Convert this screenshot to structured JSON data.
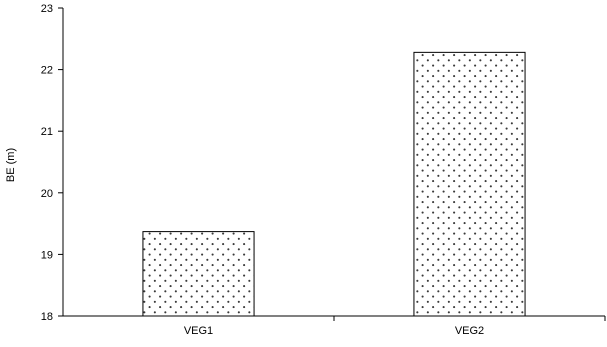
{
  "chart_data": {
    "type": "bar",
    "title": "",
    "xlabel": "",
    "ylabel": "BE (m)",
    "categories": [
      "VEG1",
      "VEG2"
    ],
    "values": [
      19.37,
      22.28
    ],
    "ylim": [
      18,
      23
    ],
    "yticks": [
      18,
      19,
      20,
      21,
      22,
      23
    ],
    "grid": false,
    "legend": "none",
    "bar_fill": "dotted",
    "bar_border_color": "#000000",
    "dot_color": "#3a3a3a"
  }
}
